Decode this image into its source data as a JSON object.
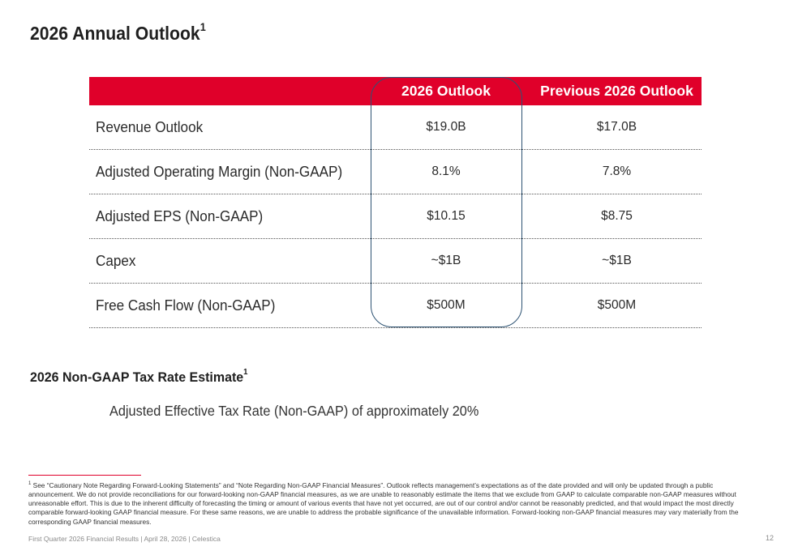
{
  "page": {
    "title": "2026 Annual Outlook",
    "title_sup": "1"
  },
  "table": {
    "headers": [
      "",
      "2026 Outlook",
      "Previous 2026 Outlook"
    ],
    "rows": [
      {
        "label": "Revenue Outlook",
        "current": "$19.0B",
        "previous": "$17.0B"
      },
      {
        "label": "Adjusted Operating Margin (Non-GAAP)",
        "current": "8.1%",
        "previous": "7.8%"
      },
      {
        "label": "Adjusted EPS (Non-GAAP)",
        "current": "$10.15",
        "previous": "$8.75"
      },
      {
        "label": "Capex",
        "current": "~$1B",
        "previous": "~$1B"
      },
      {
        "label": "Free Cash Flow (Non-GAAP)",
        "current": "$500M",
        "previous": "$500M"
      }
    ]
  },
  "tax": {
    "heading": "2026 Non-GAAP Tax Rate Estimate",
    "heading_sup": "1",
    "text": "Adjusted Effective Tax Rate (Non-GAAP) of approximately 20%"
  },
  "footnote": {
    "marker": "1",
    "text": "See “Cautionary Note Regarding Forward-Looking Statements” and “Note Regarding Non-GAAP Financial Measures”. Outlook reflects management’s expectations as of the date provided and will only be updated through a public announcement. We do not provide reconciliations for our forward-looking non-GAAP financial measures, as we are unable to  reasonably estimate the items that we exclude from GAAP to calculate comparable non-GAAP measures without unreasonable effort. This is due to the inherent difficulty of forecasting the timing or amount of various events that have not yet occurred, are out of our control and/or cannot be reasonably predicted, and that would impact the most directly comparable forward-looking GAAP financial measure. For these same reasons, we are unable to address the probable significance of the unavailable information. Forward-looking non-GAAP financial measures may vary materially from the corresponding GAAP financial measures."
  },
  "footer": {
    "text": "First Quarter 2026 Financial Results |  April 28, 2026  |  Celestica",
    "page_number": "12"
  },
  "colors": {
    "header_red": "#e0002a",
    "highlight_border": "#2e5373"
  }
}
